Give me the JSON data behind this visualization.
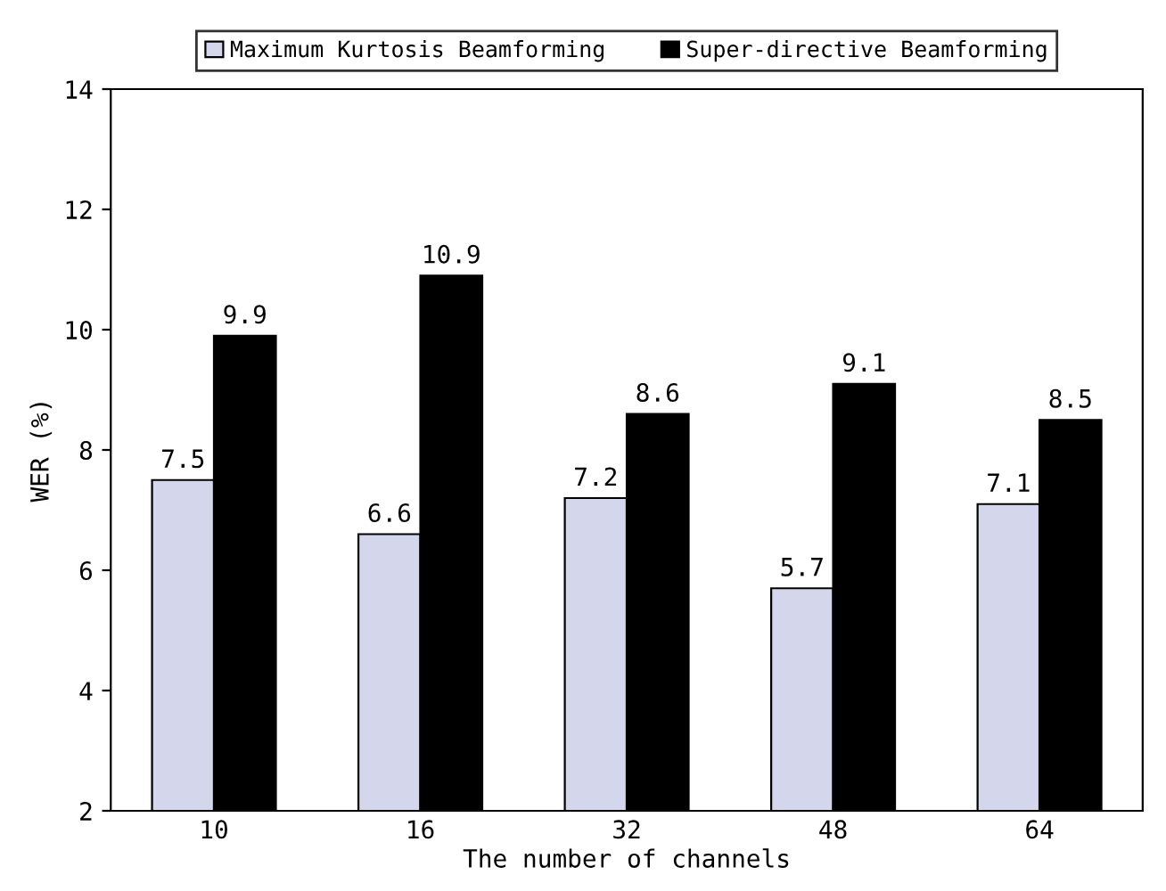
{
  "chart_data": {
    "type": "bar",
    "xlabel": "The number of channels",
    "ylabel": "WER (%)",
    "categories": [
      "10",
      "16",
      "32",
      "48",
      "64"
    ],
    "series": [
      {
        "name": "Maximum Kurtosis Beamforming",
        "color": "#d4d6ec",
        "values": [
          7.5,
          6.6,
          7.2,
          5.7,
          7.1
        ]
      },
      {
        "name": "Super-directive Beamforming",
        "color": "#000000",
        "values": [
          9.9,
          10.9,
          8.6,
          9.1,
          8.5
        ]
      }
    ],
    "ylim": [
      2,
      14
    ],
    "yticks": [
      2,
      4,
      6,
      8,
      10,
      12,
      14
    ],
    "data_labels": true,
    "legend": "top",
    "grid": false
  }
}
